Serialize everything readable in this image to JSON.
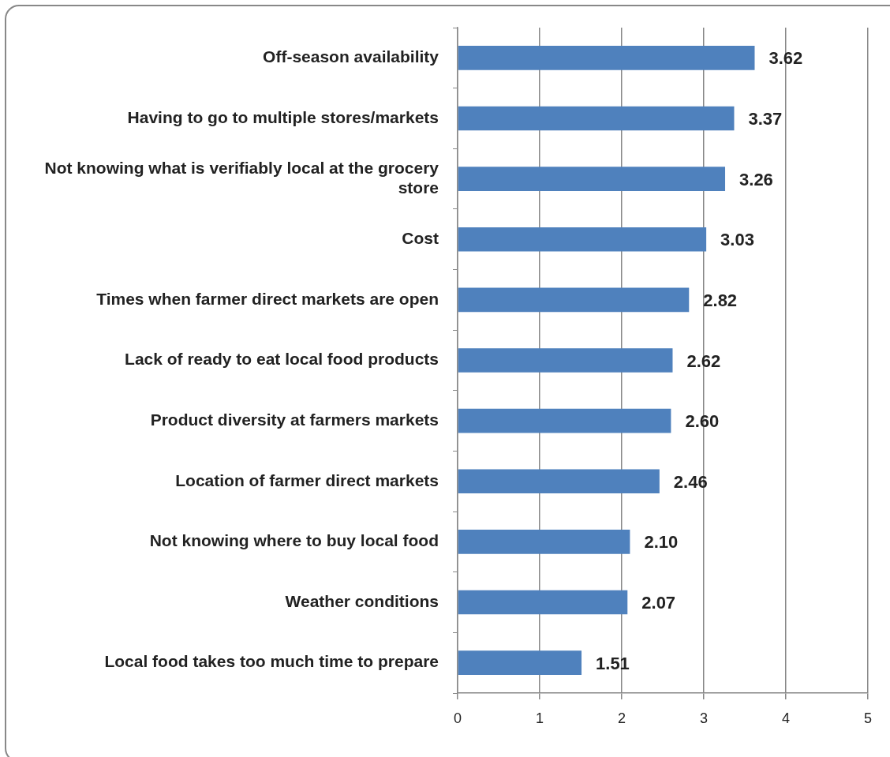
{
  "chart_data": {
    "type": "bar",
    "orientation": "horizontal",
    "categories": [
      "Off-season availability",
      "Having to go to multiple stores/markets",
      "Not knowing what is verifiably local at the grocery store",
      "Cost",
      "Times when farmer direct markets are open",
      "Lack of ready to eat local food products",
      "Product diversity at farmers markets",
      "Location of farmer direct markets",
      "Not knowing where to buy local food",
      "Weather conditions",
      "Local food takes too much time to prepare"
    ],
    "values": [
      3.62,
      3.37,
      3.26,
      3.03,
      2.82,
      2.62,
      2.6,
      2.46,
      2.1,
      2.07,
      1.51
    ],
    "value_labels": [
      "3.62",
      "3.37",
      "3.26",
      "3.03",
      "2.82",
      "2.62",
      "2.60",
      "2.46",
      "2.10",
      "2.07",
      "1.51"
    ],
    "color": "#4f81bd",
    "xlim": [
      0,
      5
    ],
    "xticks": [
      0,
      1,
      2,
      3,
      4,
      5
    ],
    "grid": "x",
    "legend": false
  }
}
